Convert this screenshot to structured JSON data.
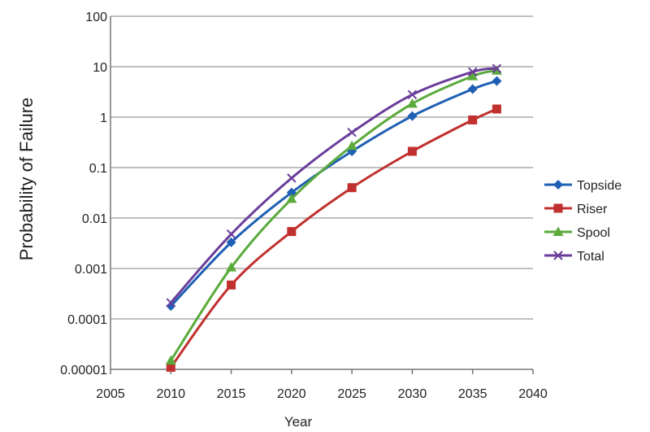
{
  "chart_data": {
    "type": "line",
    "xlabel": "Year",
    "ylabel": "Probability of Failure",
    "yscale": "log",
    "xlim": [
      2005,
      2040
    ],
    "ylim": [
      1e-05,
      100
    ],
    "x_ticks": [
      "2005",
      "2010",
      "2015",
      "2020",
      "2025",
      "2030",
      "2035",
      "2040"
    ],
    "y_ticks": [
      "0.00001",
      "0.0001",
      "0.001",
      "0.01",
      "0.1",
      "1",
      "10",
      "100"
    ],
    "grid": "horizontal",
    "legend_position": "right",
    "x": [
      2010,
      2015,
      2020,
      2025,
      2030,
      2035,
      2037
    ],
    "series": [
      {
        "name": "Topside",
        "color": "#1f5fb4",
        "marker": "diamond",
        "values": [
          0.00018,
          0.0033,
          0.032,
          0.21,
          1.05,
          3.6,
          5.2
        ]
      },
      {
        "name": "Riser",
        "color": "#c0302e",
        "marker": "square",
        "values": [
          1.1e-05,
          0.00047,
          0.0054,
          0.04,
          0.21,
          0.88,
          1.45
        ]
      },
      {
        "name": "Spool",
        "color": "#5aaa3c",
        "marker": "triangle",
        "values": [
          1.5e-05,
          0.00105,
          0.024,
          0.27,
          1.85,
          6.5,
          8.4
        ]
      },
      {
        "name": "Total",
        "color": "#6a3d9a",
        "marker": "x",
        "values": [
          0.00021,
          0.0048,
          0.062,
          0.5,
          2.8,
          7.9,
          9.2
        ]
      }
    ]
  }
}
